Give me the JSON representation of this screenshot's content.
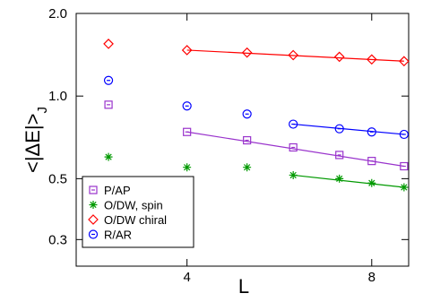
{
  "chart_data": {
    "type": "scatter",
    "xlabel": "L",
    "ylabel": "<|ΔE|>",
    "ylabel_sub": "J",
    "xlim": [
      1.6,
      8.8
    ],
    "ylim": [
      0.24,
      2.0
    ],
    "yscale": "log",
    "xticks": [
      4,
      8
    ],
    "xtick_labels": [
      "4",
      "8"
    ],
    "yticks": [
      0.3,
      0.5,
      1.0,
      2.0
    ],
    "ytick_labels": [
      "0.3",
      "0.5",
      "1.0",
      "2.0"
    ],
    "grid": false,
    "legend_position": "bottom-left",
    "series": [
      {
        "name": "P/AP",
        "marker": "square",
        "color": "#9933cc",
        "x": [
          2.3,
          4.0,
          5.3,
          6.3,
          7.3,
          8.0,
          8.7
        ],
        "y": [
          0.93,
          0.74,
          0.69,
          0.65,
          0.61,
          0.58,
          0.555
        ],
        "fit": {
          "x": [
            4.0,
            8.7
          ],
          "y": [
            0.74,
            0.555
          ]
        }
      },
      {
        "name": "O/DW, spin",
        "marker": "asterisk",
        "color": "#009900",
        "x": [
          2.3,
          4.0,
          5.3,
          6.3,
          7.3,
          8.0,
          8.7
        ],
        "y": [
          0.6,
          0.55,
          0.55,
          0.515,
          0.5,
          0.482,
          0.465
        ],
        "fit": {
          "x": [
            6.3,
            8.7
          ],
          "y": [
            0.515,
            0.465
          ]
        }
      },
      {
        "name": "O/DW chiral",
        "marker": "diamond",
        "color": "#ff0000",
        "x": [
          2.3,
          4.0,
          5.3,
          6.3,
          7.3,
          8.0,
          8.7
        ],
        "y": [
          1.55,
          1.47,
          1.44,
          1.41,
          1.39,
          1.36,
          1.34
        ],
        "fit": {
          "x": [
            4.0,
            8.7
          ],
          "y": [
            1.47,
            1.34
          ]
        }
      },
      {
        "name": "R/AR",
        "marker": "circle",
        "color": "#0000ff",
        "x": [
          2.3,
          4.0,
          5.3,
          6.3,
          7.3,
          8.0,
          8.7
        ],
        "y": [
          1.14,
          0.92,
          0.86,
          0.79,
          0.76,
          0.74,
          0.725
        ],
        "fit": {
          "x": [
            6.3,
            8.7
          ],
          "y": [
            0.79,
            0.725
          ]
        }
      }
    ]
  }
}
